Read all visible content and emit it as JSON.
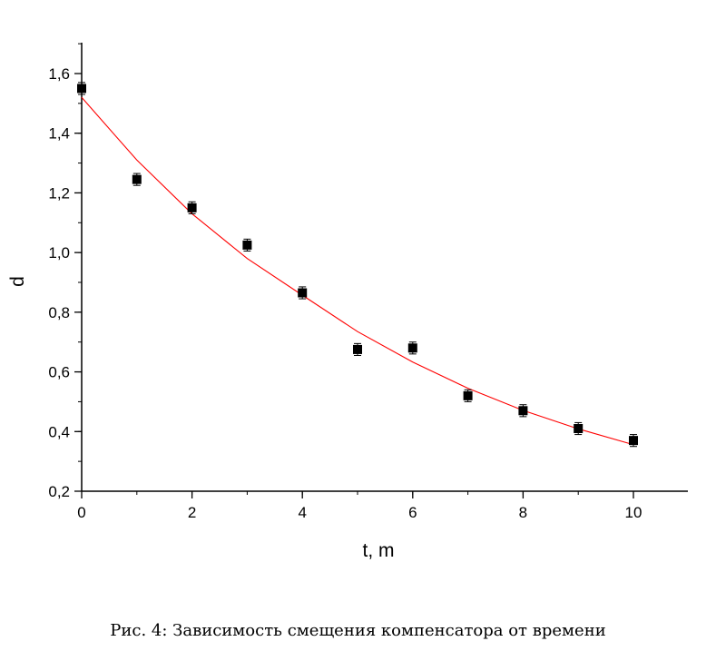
{
  "chart_data": {
    "type": "scatter",
    "xlabel": "t, m",
    "ylabel": "d",
    "xlim": [
      0,
      11
    ],
    "ylim": [
      0.2,
      1.7
    ],
    "x_ticks": [
      {
        "v": 0,
        "label": "0"
      },
      {
        "v": 2,
        "label": "2"
      },
      {
        "v": 4,
        "label": "4"
      },
      {
        "v": 6,
        "label": "6"
      },
      {
        "v": 8,
        "label": "8"
      },
      {
        "v": 10,
        "label": "10"
      }
    ],
    "y_ticks": [
      {
        "v": 0.2,
        "label": "0,2"
      },
      {
        "v": 0.4,
        "label": "0,4"
      },
      {
        "v": 0.6,
        "label": "0,6"
      },
      {
        "v": 0.8,
        "label": "0,8"
      },
      {
        "v": 1.0,
        "label": "1,0"
      },
      {
        "v": 1.2,
        "label": "1,2"
      },
      {
        "v": 1.4,
        "label": "1,4"
      },
      {
        "v": 1.6,
        "label": "1,6"
      }
    ],
    "x_minor_step": 1,
    "y_minor_step": 0.1,
    "points": {
      "x": [
        0,
        1,
        2,
        3,
        4,
        5,
        6,
        7,
        8,
        9,
        10
      ],
      "y": [
        1.55,
        1.245,
        1.15,
        1.025,
        0.865,
        0.675,
        0.68,
        0.52,
        0.47,
        0.41,
        0.37
      ],
      "yerr": 0.02,
      "marker_color": "#000000"
    },
    "fit": {
      "type": "exponential",
      "x": [
        0,
        1,
        2,
        3,
        4,
        5,
        6,
        7,
        8,
        9,
        10
      ],
      "y": [
        1.52,
        1.31,
        1.13,
        0.98,
        0.857,
        0.735,
        0.633,
        0.545,
        0.471,
        0.409,
        0.356
      ],
      "color": "#ff0000"
    }
  },
  "caption": "Рис. 4: Зависимость смещения компенсатора от времени"
}
